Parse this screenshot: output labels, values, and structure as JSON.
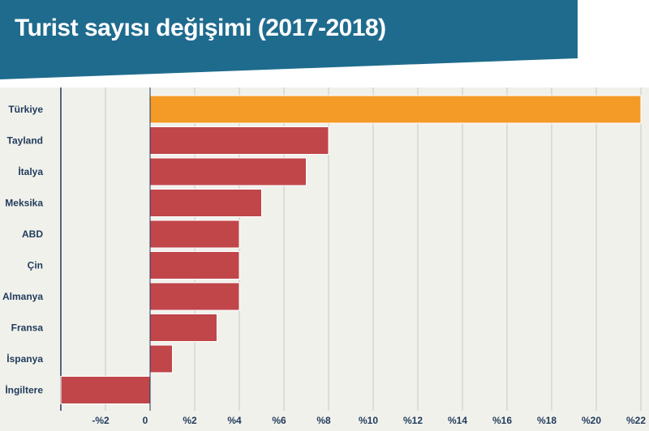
{
  "header": {
    "title": "Turist sayısı değişimi (2017-2018)",
    "band_color": "#1f6b8e"
  },
  "chart_data": {
    "type": "bar",
    "orientation": "horizontal",
    "title": "Turist sayısı değişimi (2017-2018)",
    "xlabel": "",
    "ylabel": "",
    "categories": [
      "Türkiye",
      "Tayland",
      "İtalya",
      "Meksika",
      "ABD",
      "Çin",
      "Almanya",
      "Fransa",
      "İspanya",
      "İngiltere"
    ],
    "values": [
      22,
      8,
      7,
      5,
      4,
      4,
      4,
      3,
      1,
      -4
    ],
    "highlight_category": "Türkiye",
    "highlight_color": "#f49a27",
    "bar_color": "#c0464a",
    "xlim": [
      -4,
      22
    ],
    "xticks": [
      -2,
      0,
      2,
      4,
      6,
      8,
      10,
      12,
      14,
      16,
      18,
      20,
      22
    ],
    "xtick_labels": [
      "-%2",
      "0",
      "%2",
      "%4",
      "%6",
      "%8",
      "%10",
      "%12",
      "%14",
      "%16",
      "%18",
      "%20",
      "%22"
    ],
    "grid": true,
    "legend": "none"
  }
}
